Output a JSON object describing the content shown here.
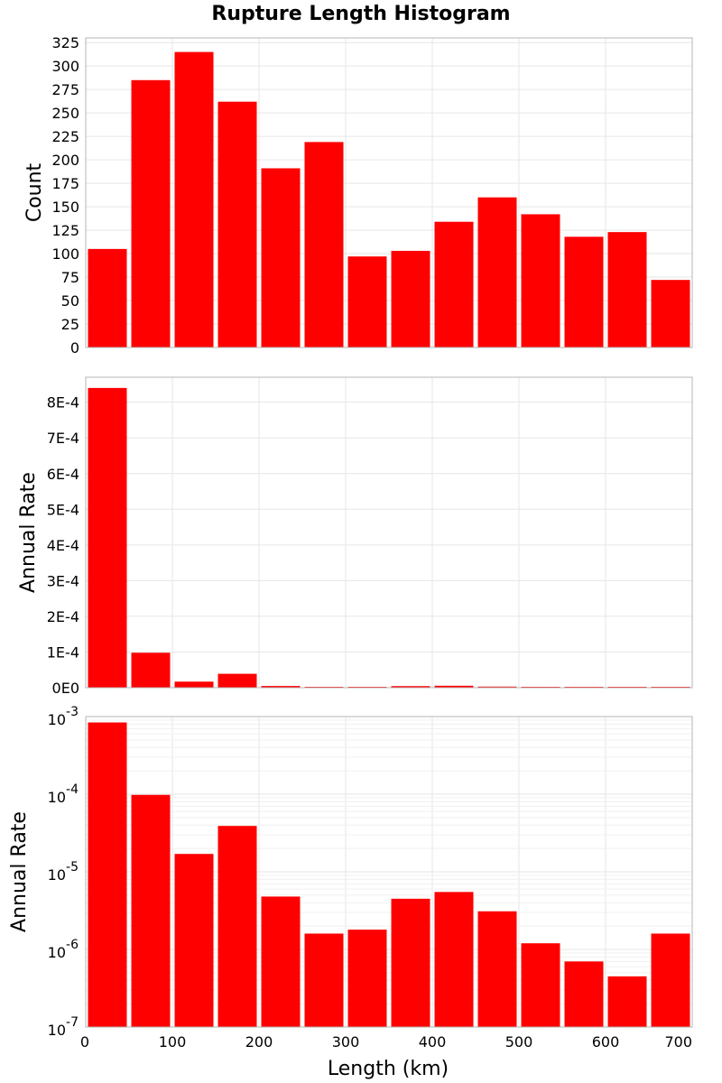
{
  "chart_data": {
    "type": "bar",
    "title": "Rupture Length Histogram",
    "bar_color": "#ff0000",
    "xlabel": "Length (km)",
    "xlim": [
      0,
      700
    ],
    "xticks": [
      "0",
      "100",
      "200",
      "300",
      "400",
      "500",
      "600",
      "700"
    ],
    "bin_centers": [
      25,
      75,
      125,
      175,
      225,
      275,
      325,
      375,
      425,
      475,
      525,
      575,
      625,
      675
    ],
    "bin_width": 50,
    "panels": [
      {
        "name": "count",
        "ylabel": "Count",
        "scale": "linear",
        "ylim": [
          0,
          330
        ],
        "yticks": [
          "0",
          "25",
          "50",
          "75",
          "100",
          "125",
          "150",
          "175",
          "200",
          "225",
          "250",
          "275",
          "300",
          "325"
        ],
        "values": [
          105,
          285,
          315,
          262,
          191,
          219,
          97,
          103,
          134,
          160,
          142,
          118,
          123,
          72
        ]
      },
      {
        "name": "annual-rate-linear",
        "ylabel": "Annual Rate",
        "scale": "linear",
        "ylim": [
          0,
          0.00087
        ],
        "yticks": [
          "0E0",
          "1E-4",
          "2E-4",
          "3E-4",
          "4E-4",
          "5E-4",
          "6E-4",
          "7E-4",
          "8E-4"
        ],
        "values": [
          0.00084,
          9.8e-05,
          1.7e-05,
          3.9e-05,
          4.8e-06,
          1.6e-06,
          1.8e-06,
          4.5e-06,
          5.5e-06,
          3.1e-06,
          1.2e-06,
          7e-07,
          4.5e-07,
          1.6e-06
        ]
      },
      {
        "name": "annual-rate-log",
        "ylabel": "Annual Rate",
        "scale": "log",
        "ylim": [
          1e-07,
          0.001
        ],
        "yticks_base": [
          "10",
          "10",
          "10",
          "10",
          "10"
        ],
        "yticks_exp": [
          "-7",
          "-6",
          "-5",
          "-4",
          "-3"
        ],
        "values": [
          0.00084,
          9.8e-05,
          1.7e-05,
          3.9e-05,
          4.8e-06,
          1.6e-06,
          1.8e-06,
          4.5e-06,
          5.5e-06,
          3.1e-06,
          1.2e-06,
          7e-07,
          4.5e-07,
          1.6e-06
        ]
      }
    ]
  }
}
